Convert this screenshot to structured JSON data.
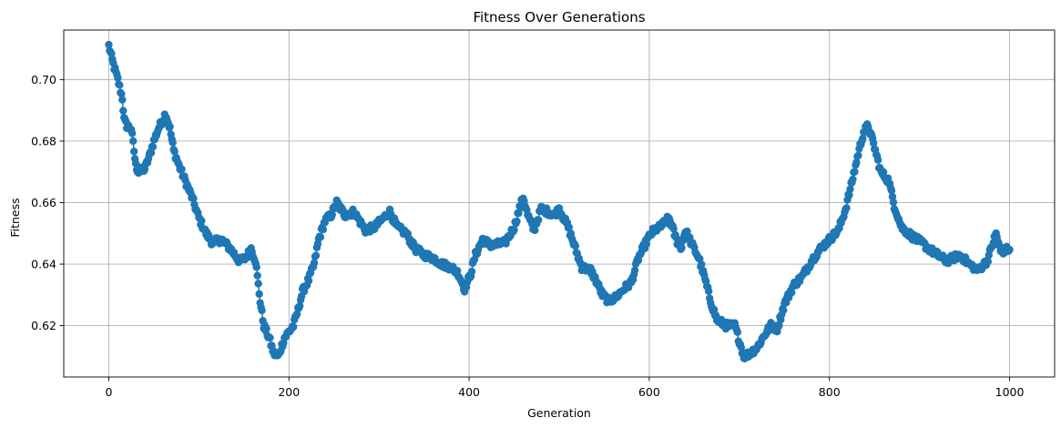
{
  "chart_data": {
    "type": "line",
    "title": "Fitness Over Generations",
    "xlabel": "Generation",
    "ylabel": "Fitness",
    "xlim": [
      -50,
      1050
    ],
    "ylim": [
      0.6033,
      0.7161
    ],
    "xticks": [
      0,
      200,
      400,
      600,
      800,
      1000
    ],
    "yticks": [
      0.62,
      0.64,
      0.66,
      0.68,
      0.7
    ],
    "ytick_labels": [
      "0.62",
      "0.64",
      "0.66",
      "0.68",
      "0.70"
    ],
    "grid": true,
    "marker": "circle",
    "color": "#1f77b4",
    "series": [
      {
        "name": "",
        "anchors": [
          [
            0,
            0.711
          ],
          [
            5,
            0.705
          ],
          [
            10,
            0.7
          ],
          [
            15,
            0.694
          ],
          [
            17,
            0.687
          ],
          [
            20,
            0.685
          ],
          [
            25,
            0.684
          ],
          [
            30,
            0.672
          ],
          [
            33,
            0.67
          ],
          [
            40,
            0.671
          ],
          [
            45,
            0.675
          ],
          [
            50,
            0.68
          ],
          [
            55,
            0.684
          ],
          [
            60,
            0.687
          ],
          [
            63,
            0.689
          ],
          [
            68,
            0.684
          ],
          [
            72,
            0.677
          ],
          [
            78,
            0.672
          ],
          [
            85,
            0.667
          ],
          [
            92,
            0.662
          ],
          [
            100,
            0.655
          ],
          [
            108,
            0.65
          ],
          [
            115,
            0.647
          ],
          [
            125,
            0.648
          ],
          [
            135,
            0.645
          ],
          [
            145,
            0.641
          ],
          [
            152,
            0.642
          ],
          [
            158,
            0.645
          ],
          [
            163,
            0.641
          ],
          [
            168,
            0.628
          ],
          [
            172,
            0.62
          ],
          [
            178,
            0.616
          ],
          [
            183,
            0.611
          ],
          [
            188,
            0.61
          ],
          [
            195,
            0.616
          ],
          [
            205,
            0.62
          ],
          [
            210,
            0.625
          ],
          [
            215,
            0.631
          ],
          [
            222,
            0.635
          ],
          [
            228,
            0.64
          ],
          [
            233,
            0.648
          ],
          [
            240,
            0.654
          ],
          [
            247,
            0.656
          ],
          [
            253,
            0.66
          ],
          [
            262,
            0.656
          ],
          [
            272,
            0.657
          ],
          [
            285,
            0.651
          ],
          [
            295,
            0.652
          ],
          [
            305,
            0.655
          ],
          [
            312,
            0.657
          ],
          [
            320,
            0.652
          ],
          [
            330,
            0.65
          ],
          [
            340,
            0.645
          ],
          [
            350,
            0.643
          ],
          [
            360,
            0.642
          ],
          [
            370,
            0.64
          ],
          [
            380,
            0.639
          ],
          [
            388,
            0.637
          ],
          [
            395,
            0.632
          ],
          [
            402,
            0.637
          ],
          [
            407,
            0.643
          ],
          [
            415,
            0.648
          ],
          [
            425,
            0.646
          ],
          [
            440,
            0.647
          ],
          [
            450,
            0.652
          ],
          [
            460,
            0.662
          ],
          [
            465,
            0.656
          ],
          [
            472,
            0.651
          ],
          [
            480,
            0.658
          ],
          [
            495,
            0.656
          ],
          [
            500,
            0.658
          ],
          [
            510,
            0.652
          ],
          [
            518,
            0.645
          ],
          [
            525,
            0.639
          ],
          [
            535,
            0.638
          ],
          [
            542,
            0.634
          ],
          [
            548,
            0.63
          ],
          [
            555,
            0.628
          ],
          [
            562,
            0.629
          ],
          [
            572,
            0.632
          ],
          [
            580,
            0.634
          ],
          [
            588,
            0.642
          ],
          [
            598,
            0.648
          ],
          [
            605,
            0.651
          ],
          [
            612,
            0.652
          ],
          [
            622,
            0.655
          ],
          [
            630,
            0.648
          ],
          [
            635,
            0.645
          ],
          [
            640,
            0.651
          ],
          [
            648,
            0.646
          ],
          [
            655,
            0.642
          ],
          [
            662,
            0.635
          ],
          [
            668,
            0.628
          ],
          [
            675,
            0.622
          ],
          [
            685,
            0.62
          ],
          [
            695,
            0.62
          ],
          [
            700,
            0.615
          ],
          [
            705,
            0.61
          ],
          [
            712,
            0.611
          ],
          [
            720,
            0.613
          ],
          [
            728,
            0.617
          ],
          [
            735,
            0.62
          ],
          [
            742,
            0.619
          ],
          [
            750,
            0.627
          ],
          [
            760,
            0.633
          ],
          [
            770,
            0.636
          ],
          [
            780,
            0.641
          ],
          [
            790,
            0.645
          ],
          [
            800,
            0.648
          ],
          [
            810,
            0.651
          ],
          [
            818,
            0.658
          ],
          [
            826,
            0.668
          ],
          [
            832,
            0.676
          ],
          [
            838,
            0.683
          ],
          [
            843,
            0.685
          ],
          [
            850,
            0.678
          ],
          [
            857,
            0.67
          ],
          [
            866,
            0.667
          ],
          [
            872,
            0.659
          ],
          [
            880,
            0.652
          ],
          [
            892,
            0.649
          ],
          [
            902,
            0.647
          ],
          [
            915,
            0.644
          ],
          [
            930,
            0.641
          ],
          [
            945,
            0.643
          ],
          [
            955,
            0.64
          ],
          [
            965,
            0.638
          ],
          [
            975,
            0.641
          ],
          [
            985,
            0.65
          ],
          [
            990,
            0.644
          ],
          [
            1000,
            0.645
          ]
        ]
      }
    ]
  }
}
